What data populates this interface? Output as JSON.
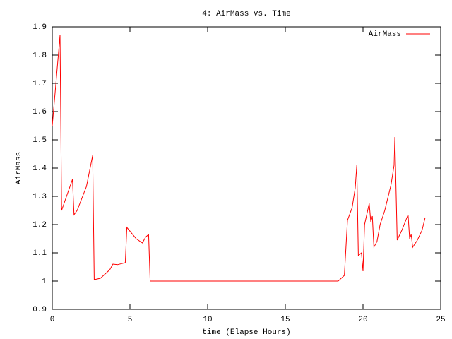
{
  "chart_data": {
    "type": "line",
    "title": "4: AirMass vs. Time",
    "x_label": "time (Elapse Hours)",
    "y_label": "AirMass",
    "xlim": [
      0,
      25
    ],
    "xticks": [
      0,
      5,
      10,
      15,
      20,
      25
    ],
    "ylim": [
      0.9,
      1.9
    ],
    "yticks": [
      0.9,
      1,
      1.1,
      1.2,
      1.3,
      1.4,
      1.5,
      1.6,
      1.7,
      1.8,
      1.9
    ],
    "legend": "top-right",
    "x": [
      0,
      0.5,
      0.6,
      1.3,
      1.4,
      1.6,
      2.2,
      2.6,
      2.7,
      3.1,
      3.7,
      3.9,
      4.2,
      4.7,
      4.8,
      5.1,
      5.4,
      5.8,
      6.0,
      6.2,
      6.3,
      18.4,
      18.8,
      19.0,
      19.3,
      19.5,
      19.6,
      19.7,
      19.9,
      20.0,
      20.1,
      20.4,
      20.5,
      20.6,
      20.7,
      20.9,
      21.1,
      21.4,
      21.8,
      22.0,
      22.05,
      22.2,
      22.5,
      22.9,
      23.0,
      23.1,
      23.2,
      23.5,
      23.8,
      24.0
    ],
    "series": [
      {
        "name": "AirMass",
        "color": "#ff0000",
        "values": [
          1.55,
          1.87,
          1.25,
          1.36,
          1.235,
          1.25,
          1.335,
          1.445,
          1.005,
          1.01,
          1.04,
          1.06,
          1.058,
          1.065,
          1.19,
          1.17,
          1.15,
          1.135,
          1.155,
          1.165,
          1.0,
          1.0,
          1.02,
          1.215,
          1.26,
          1.33,
          1.41,
          1.09,
          1.1,
          1.035,
          1.2,
          1.275,
          1.21,
          1.23,
          1.12,
          1.14,
          1.2,
          1.25,
          1.34,
          1.41,
          1.51,
          1.145,
          1.18,
          1.235,
          1.15,
          1.165,
          1.12,
          1.145,
          1.18,
          1.225
        ]
      }
    ]
  }
}
